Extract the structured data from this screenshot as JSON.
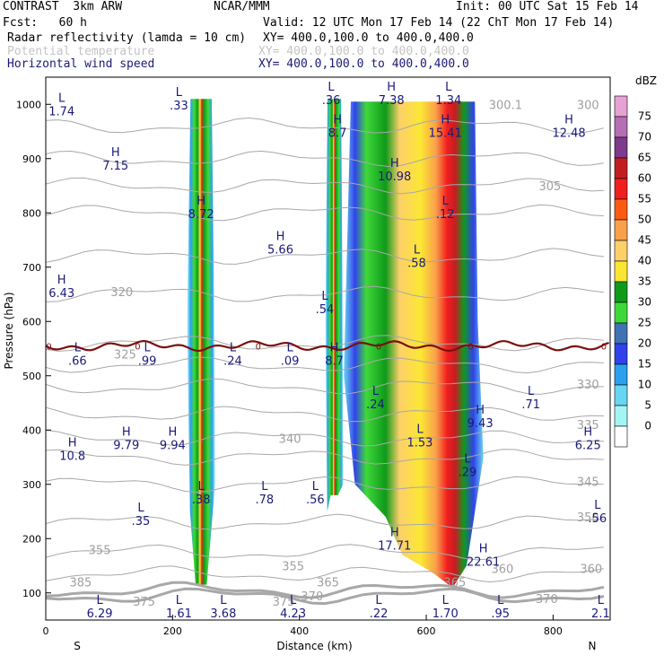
{
  "header": {
    "model": "CONTRAST  3km ARW",
    "org": "NCAR/MMM",
    "init": "Init: 00 UTC Sat 15 Feb 14",
    "fcst": "Fcst:   60 h",
    "valid": "Valid: 12 UTC Mon 17 Feb 14 (22 ChT Mon 17 Feb 14)",
    "fields": [
      {
        "name": "Radar reflectivity (lamda = 10 cm)",
        "xy": "XY= 400.0,100.0 to 400.0,400.0",
        "style": "black"
      },
      {
        "name": "Potential temperature",
        "xy": "XY= 400.0,100.0 to 400.0,400.0",
        "style": "muted"
      },
      {
        "name": "Horizontal wind speed",
        "xy": "XY= 400.0,100.0 to 400.0,400.0",
        "style": "navy"
      }
    ]
  },
  "chart_data": {
    "type": "heatmap",
    "xlabel": "Distance (km)",
    "ylabel": "Pressure (hPa)",
    "xlim": [
      0,
      890
    ],
    "ylim": [
      1050,
      50
    ],
    "x_ticks": [
      0,
      200,
      400,
      600,
      800
    ],
    "y_ticks": [
      100,
      200,
      300,
      400,
      500,
      600,
      700,
      800,
      900,
      1000
    ],
    "end_labels": {
      "left": "S",
      "right": "N"
    },
    "colorbar": {
      "unit": "dBZ",
      "levels": [
        75,
        70,
        65,
        60,
        55,
        50,
        45,
        40,
        35,
        30,
        25,
        20,
        15,
        10,
        5,
        0
      ],
      "colors": [
        "#e6a2d2",
        "#b66eb5",
        "#7e3a8d",
        "#c21e22",
        "#f11e1e",
        "#fc5a12",
        "#faa04a",
        "#fdd06a",
        "#fbe733",
        "#0f9a1a",
        "#3fd83a",
        "#4072b5",
        "#3242ea",
        "#2ba1ee",
        "#68d5f2",
        "#a3f5f5"
      ]
    },
    "reflectivity_cells": [
      {
        "x_center": 245,
        "p_top": 115,
        "p_bottom": 1010,
        "half_width": 22,
        "peak_dbz": 55
      },
      {
        "x_center": 455,
        "p_top": 280,
        "p_bottom": 1010,
        "half_width": 14,
        "peak_dbz": 50
      },
      {
        "x_center": 580,
        "p_top": 110,
        "p_bottom": 1005,
        "half_width": 110,
        "peak_dbz": 60
      }
    ],
    "isotherm_labels": [
      {
        "text": "375",
        "x": 155,
        "p": 85
      },
      {
        "text": "375",
        "x": 375,
        "p": 85
      },
      {
        "text": "370",
        "x": 420,
        "p": 95
      },
      {
        "text": "365",
        "x": 445,
        "p": 120
      },
      {
        "text": "370",
        "x": 790,
        "p": 90
      },
      {
        "text": "365",
        "x": 645,
        "p": 120
      },
      {
        "text": "360",
        "x": 720,
        "p": 145
      },
      {
        "text": "360",
        "x": 860,
        "p": 145
      },
      {
        "text": "355",
        "x": 85,
        "p": 180
      },
      {
        "text": "355",
        "x": 390,
        "p": 150
      },
      {
        "text": "350",
        "x": 855,
        "p": 240
      },
      {
        "text": "345",
        "x": 855,
        "p": 305
      },
      {
        "text": "340",
        "x": 385,
        "p": 385
      },
      {
        "text": "335",
        "x": 855,
        "p": 410
      },
      {
        "text": "330",
        "x": 855,
        "p": 485
      },
      {
        "text": "325",
        "x": 125,
        "p": 540
      },
      {
        "text": "320",
        "x": 120,
        "p": 655
      },
      {
        "text": "305",
        "x": 795,
        "p": 850
      },
      {
        "text": "300.1",
        "x": 725,
        "p": 1000
      },
      {
        "text": "300",
        "x": 855,
        "p": 1000
      },
      {
        "text": "385",
        "x": 55,
        "p": 120
      }
    ],
    "wind_extrema": [
      {
        "kind": "L",
        "value": "6.29",
        "x": 85,
        "p": 75
      },
      {
        "kind": "L",
        "value": "1.61",
        "x": 210,
        "p": 75
      },
      {
        "kind": "L",
        "value": "3.68",
        "x": 280,
        "p": 75
      },
      {
        "kind": "L",
        "value": "4.23",
        "x": 390,
        "p": 75
      },
      {
        "kind": "L",
        "value": ".22",
        "x": 525,
        "p": 75
      },
      {
        "kind": "L",
        "value": "1.70",
        "x": 630,
        "p": 75
      },
      {
        "kind": "L",
        "value": ".95",
        "x": 717,
        "p": 75
      },
      {
        "kind": "L",
        "value": "2.1",
        "x": 875,
        "p": 75
      },
      {
        "kind": "H",
        "value": "22.61",
        "x": 690,
        "p": 170
      },
      {
        "kind": "H",
        "value": "17.71",
        "x": 550,
        "p": 200
      },
      {
        "kind": "L",
        "value": ".35",
        "x": 150,
        "p": 245
      },
      {
        "kind": "L",
        "value": ".38",
        "x": 245,
        "p": 285
      },
      {
        "kind": "L",
        "value": ".78",
        "x": 345,
        "p": 285
      },
      {
        "kind": "L",
        "value": ".56",
        "x": 425,
        "p": 285
      },
      {
        "kind": "L",
        "value": ".29",
        "x": 665,
        "p": 335
      },
      {
        "kind": "L",
        "value": ".56",
        "x": 870,
        "p": 250
      },
      {
        "kind": "H",
        "value": "10.8",
        "x": 42,
        "p": 365
      },
      {
        "kind": "H",
        "value": "9.79",
        "x": 127,
        "p": 385
      },
      {
        "kind": "H",
        "value": "9.94",
        "x": 200,
        "p": 385
      },
      {
        "kind": "L",
        "value": "1.53",
        "x": 590,
        "p": 390
      },
      {
        "kind": "H",
        "value": "9.43",
        "x": 685,
        "p": 425
      },
      {
        "kind": "H",
        "value": "6.25",
        "x": 855,
        "p": 385
      },
      {
        "kind": "L",
        "value": ".24",
        "x": 520,
        "p": 460
      },
      {
        "kind": "L",
        "value": ".71",
        "x": 765,
        "p": 460
      },
      {
        "kind": "L",
        "value": ".66",
        "x": 50,
        "p": 540
      },
      {
        "kind": "L",
        "value": ".99",
        "x": 160,
        "p": 540
      },
      {
        "kind": "L",
        "value": ".24",
        "x": 295,
        "p": 540
      },
      {
        "kind": "L",
        "value": ".09",
        "x": 385,
        "p": 540
      },
      {
        "kind": "H",
        "value": "8.7",
        "x": 455,
        "p": 540
      },
      {
        "kind": "L",
        "value": ".54",
        "x": 440,
        "p": 635
      },
      {
        "kind": "H",
        "value": "6.43",
        "x": 25,
        "p": 665
      },
      {
        "kind": "L",
        "value": ".58",
        "x": 585,
        "p": 720
      },
      {
        "kind": "H",
        "value": "5.66",
        "x": 370,
        "p": 745
      },
      {
        "kind": "H",
        "value": "8.72",
        "x": 245,
        "p": 810
      },
      {
        "kind": "L",
        "value": ".12",
        "x": 630,
        "p": 810
      },
      {
        "kind": "H",
        "value": "10.98",
        "x": 550,
        "p": 880
      },
      {
        "kind": "H",
        "value": "7.15",
        "x": 110,
        "p": 900
      },
      {
        "kind": "H",
        "value": "8.7",
        "x": 460,
        "p": 960
      },
      {
        "kind": "H",
        "value": "15.41",
        "x": 630,
        "p": 960
      },
      {
        "kind": "H",
        "value": "12.48",
        "x": 825,
        "p": 960
      },
      {
        "kind": "L",
        "value": "1.74",
        "x": 25,
        "p": 1000
      },
      {
        "kind": "L",
        "value": ".33",
        "x": 210,
        "p": 1010
      },
      {
        "kind": "L",
        "value": ".36",
        "x": 450,
        "p": 1020
      },
      {
        "kind": "H",
        "value": "7.38",
        "x": 545,
        "p": 1020
      },
      {
        "kind": "L",
        "value": "1.34",
        "x": 635,
        "p": 1020
      }
    ],
    "freezing_line": {
      "label": "0",
      "label_x": [
        5,
        145,
        335,
        525,
        670,
        880
      ],
      "p_level": 555
    }
  }
}
